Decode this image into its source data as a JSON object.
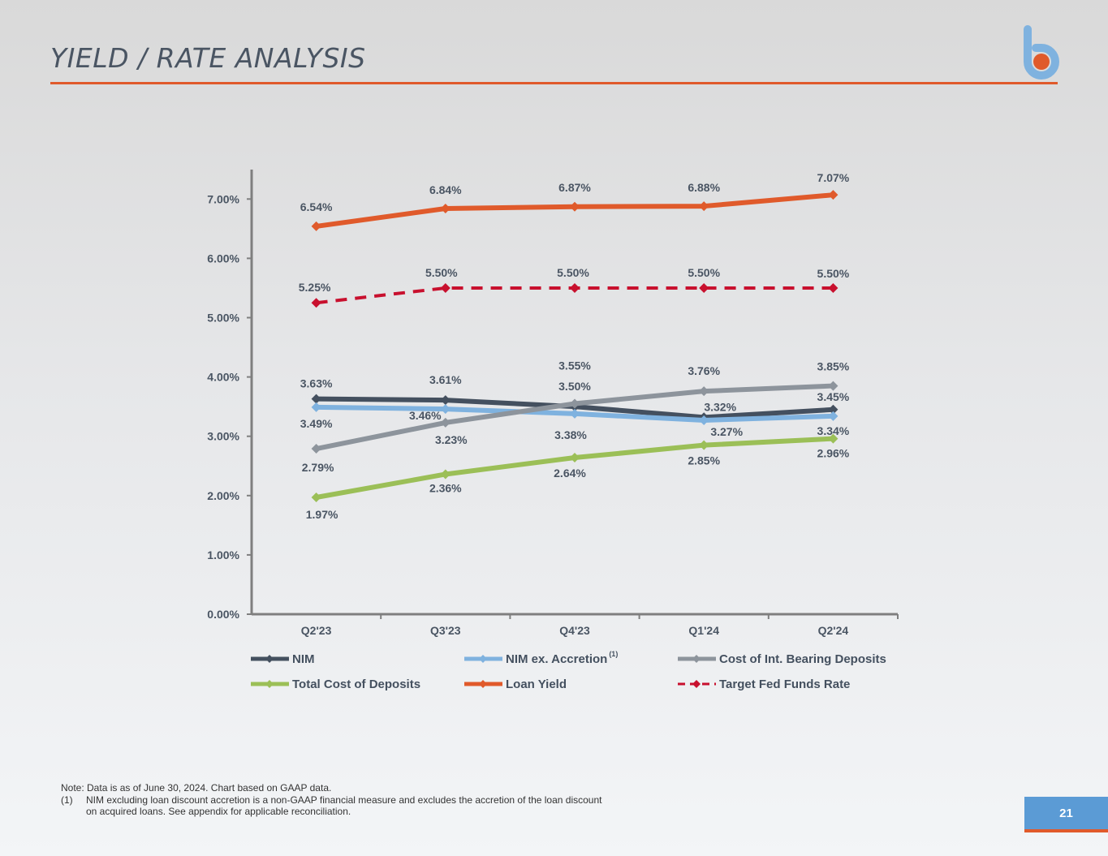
{
  "page": {
    "title": "YIELD / RATE ANALYSIS",
    "page_number": "21",
    "note": "Note: Data is as of June 30, 2024. Chart based on GAAP data.",
    "footnote_number": "(1)",
    "footnote_text": "NIM excluding loan discount accretion is a non-GAAP financial measure and excludes the accretion of the loan discount on acquired loans. See appendix for applicable reconciliation.",
    "colors": {
      "accent": "#e05a2b",
      "brand_blue": "#5b9bd5",
      "title": "#4a5563"
    }
  },
  "chart_data": {
    "type": "line",
    "title": "",
    "xlabel": "",
    "ylabel": "",
    "ylim": [
      0,
      7.5
    ],
    "yticks": [
      0,
      1,
      2,
      3,
      4,
      5,
      6,
      7
    ],
    "ytick_labels": [
      "0.00%",
      "1.00%",
      "2.00%",
      "3.00%",
      "4.00%",
      "5.00%",
      "6.00%",
      "7.00%"
    ],
    "categories": [
      "Q2'23",
      "Q3'23",
      "Q4'23",
      "Q1'24",
      "Q2'24"
    ],
    "series": [
      {
        "name": "NIM",
        "color": "#44505f",
        "dashed": false,
        "values": [
          3.63,
          3.61,
          3.5,
          3.32,
          3.45
        ],
        "labels": [
          "3.63%",
          "3.61%",
          "3.50%",
          "3.32%",
          "3.45%"
        ]
      },
      {
        "name": "NIM ex. Accretion",
        "superscript": "(1)",
        "color": "#7fb2df",
        "dashed": false,
        "values": [
          3.49,
          3.46,
          3.38,
          3.27,
          3.34
        ],
        "labels": [
          "3.49%",
          "3.46%",
          "3.38%",
          "3.27%",
          "3.34%"
        ]
      },
      {
        "name": "Cost of Int. Bearing Deposits",
        "color": "#8d949c",
        "dashed": false,
        "values": [
          2.79,
          3.23,
          3.55,
          3.76,
          3.85
        ],
        "labels": [
          "2.79%",
          "3.23%",
          "3.55%",
          "3.76%",
          "3.85%"
        ]
      },
      {
        "name": "Total Cost of Deposits",
        "color": "#9bbf57",
        "dashed": false,
        "values": [
          1.97,
          2.36,
          2.64,
          2.85,
          2.96
        ],
        "labels": [
          "1.97%",
          "2.36%",
          "2.64%",
          "2.85%",
          "2.96%"
        ]
      },
      {
        "name": "Loan Yield",
        "color": "#e05a2b",
        "dashed": false,
        "values": [
          6.54,
          6.84,
          6.87,
          6.88,
          7.07
        ],
        "labels": [
          "6.54%",
          "6.84%",
          "6.87%",
          "6.88%",
          "7.07%"
        ]
      },
      {
        "name": "Target Fed Funds Rate",
        "color": "#c8102e",
        "dashed": true,
        "values": [
          5.25,
          5.5,
          5.5,
          5.5,
          5.5
        ],
        "labels": [
          "5.25%",
          "5.50%",
          "5.50%",
          "5.50%",
          "5.50%"
        ]
      }
    ],
    "legend_position": "bottom"
  }
}
